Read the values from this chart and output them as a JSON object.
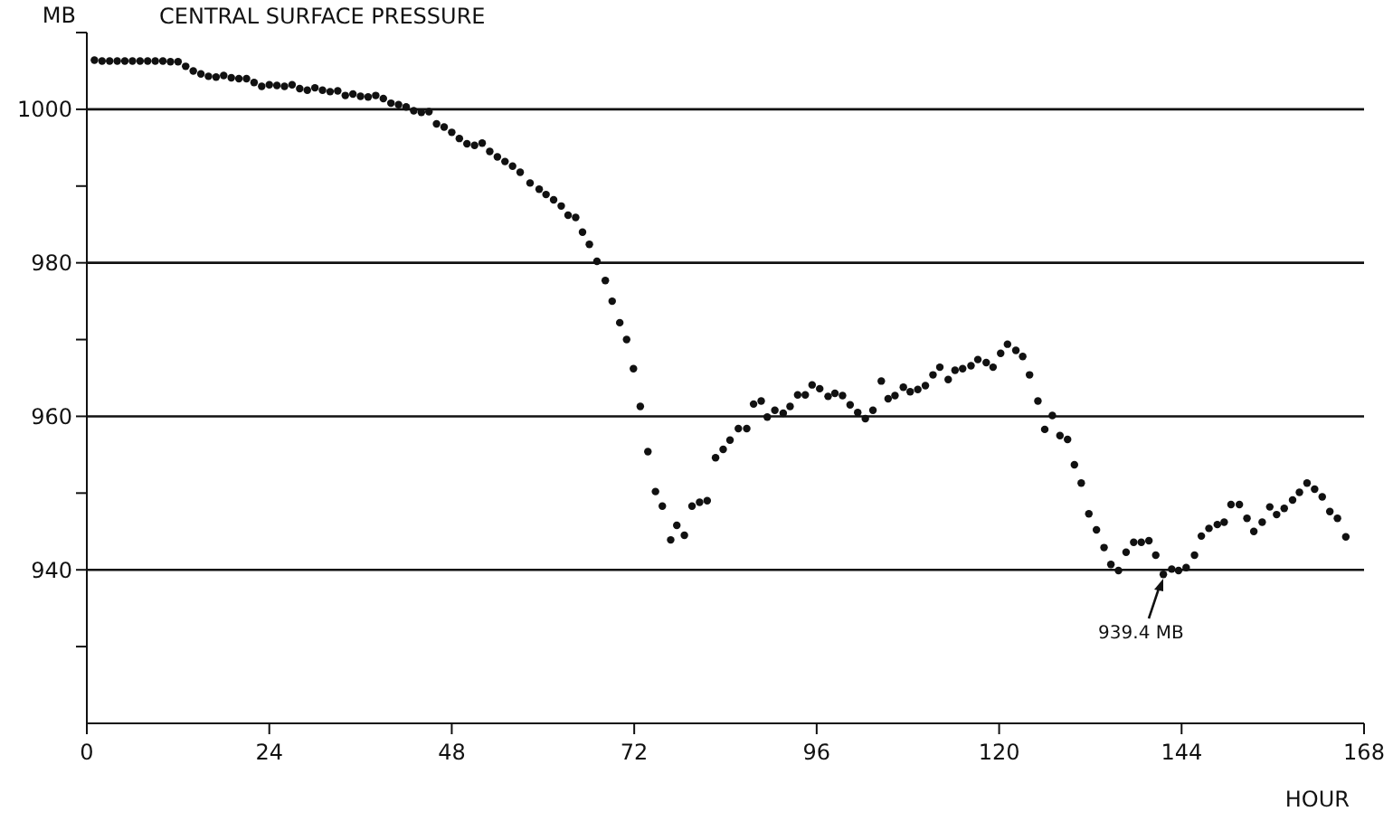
{
  "chart_data": {
    "type": "scatter",
    "title": "CENTRAL SURFACE PRESSURE",
    "xlabel": "HOUR",
    "ylabel": "MB",
    "xlim": [
      0,
      168
    ],
    "xticks": [
      0,
      24,
      48,
      72,
      96,
      120,
      144,
      168
    ],
    "ylim": [
      920,
      1010
    ],
    "yticks": [
      {
        "value": 930,
        "label": null
      },
      940,
      {
        "value": 950,
        "label": null
      },
      960,
      {
        "value": 970,
        "label": null
      },
      980,
      {
        "value": 990,
        "label": null
      },
      1000,
      {
        "value": 1010,
        "label": null
      }
    ],
    "grid": "y",
    "marker": "circle",
    "annotations": [
      {
        "text": "939.4 MB",
        "x": 141.6,
        "y": 939.4
      }
    ],
    "series": [
      {
        "color": "#111111",
        "x": [
          1,
          2,
          3,
          4,
          5,
          6,
          7,
          8,
          9,
          10,
          11,
          12,
          13,
          14,
          15,
          16,
          17,
          18,
          19,
          20,
          21,
          22,
          23,
          24,
          25,
          26,
          27,
          28,
          29,
          30,
          31,
          32,
          33,
          34,
          35,
          36,
          37,
          38,
          39,
          40,
          41,
          42,
          43,
          44,
          45,
          46,
          47,
          48,
          49,
          50,
          51,
          52,
          53,
          54,
          55,
          56,
          57,
          58.3,
          59.5,
          60.4,
          61.4,
          62.4,
          63.3,
          64.3,
          65.2,
          66.1,
          67.1,
          68.2,
          69.1,
          70.1,
          71,
          71.9,
          72.8,
          73.8,
          74.8,
          75.7,
          76.8,
          77.6,
          78.6,
          79.6,
          80.6,
          81.6,
          82.7,
          83.7,
          84.6,
          85.7,
          86.8,
          87.7,
          88.7,
          89.5,
          90.5,
          91.6,
          92.5,
          93.5,
          94.5,
          95.4,
          96.4,
          97.5,
          98.4,
          99.4,
          100.4,
          101.4,
          102.4,
          103.4,
          104.5,
          105.4,
          106.3,
          107.4,
          108.3,
          109.3,
          110.3,
          111.3,
          112.2,
          113.3,
          114.2,
          115.2,
          116.3,
          117.2,
          118.3,
          119.2,
          120.2,
          121.1,
          122.2,
          123.1,
          124,
          125.1,
          126,
          127,
          128,
          129,
          129.9,
          130.8,
          131.8,
          132.8,
          133.8,
          134.7,
          135.7,
          136.7,
          137.7,
          138.7,
          139.7,
          140.6,
          141.6,
          142.7,
          143.6,
          144.6,
          145.7,
          146.6,
          147.6,
          148.7,
          149.6,
          150.5,
          151.6,
          152.6,
          153.5,
          154.6,
          155.6,
          156.5,
          157.5,
          158.6,
          159.5,
          160.5,
          161.5,
          162.5,
          163.5,
          164.5,
          165.6
        ],
        "values": [
          1006.4,
          1006.3,
          1006.3,
          1006.3,
          1006.3,
          1006.3,
          1006.3,
          1006.3,
          1006.3,
          1006.3,
          1006.2,
          1006.2,
          1005.6,
          1005,
          1004.6,
          1004.3,
          1004.2,
          1004.4,
          1004.1,
          1004,
          1004,
          1003.5,
          1003,
          1003.2,
          1003.1,
          1003,
          1003.2,
          1002.7,
          1002.5,
          1002.8,
          1002.5,
          1002.3,
          1002.4,
          1001.8,
          1002,
          1001.7,
          1001.6,
          1001.8,
          1001.4,
          1000.8,
          1000.6,
          1000.3,
          999.8,
          999.6,
          999.7,
          998.1,
          997.7,
          997,
          996.2,
          995.5,
          995.3,
          995.6,
          994.5,
          993.8,
          993.2,
          992.6,
          991.8,
          990.4,
          989.6,
          988.9,
          988.2,
          987.4,
          986.2,
          985.9,
          984,
          982.4,
          980.2,
          977.7,
          975,
          972.2,
          970,
          966.2,
          961.3,
          955.4,
          950.2,
          948.3,
          943.9,
          945.8,
          944.5,
          948.3,
          948.8,
          949,
          954.6,
          955.7,
          956.9,
          958.4,
          958.4,
          961.6,
          962,
          959.9,
          960.8,
          960.4,
          961.3,
          962.8,
          962.8,
          964.1,
          963.6,
          962.6,
          963,
          962.7,
          961.5,
          960.5,
          959.7,
          960.8,
          964.6,
          962.3,
          962.7,
          963.8,
          963.2,
          963.5,
          964,
          965.4,
          966.4,
          964.8,
          966,
          966.2,
          966.6,
          967.4,
          967,
          966.4,
          968.2,
          969.4,
          968.6,
          967.8,
          965.4,
          962,
          958.3,
          960.1,
          957.5,
          957,
          953.7,
          951.3,
          947.3,
          945.2,
          942.9,
          940.7,
          939.9,
          942.3,
          943.6,
          943.6,
          943.8,
          941.9,
          939.4,
          940.1,
          939.9,
          940.3,
          941.9,
          944.4,
          945.4,
          945.9,
          946.2,
          948.5,
          948.5,
          946.7,
          945,
          946.2,
          948.2,
          947.2,
          948,
          949.1,
          950.1,
          951.3,
          950.5,
          949.5,
          947.6,
          946.7,
          944.3
        ]
      }
    ]
  }
}
